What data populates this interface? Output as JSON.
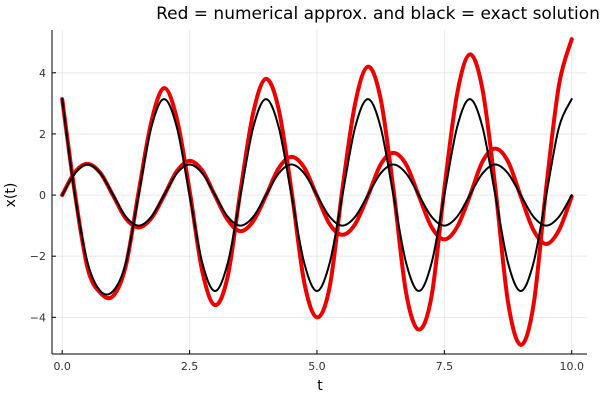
{
  "chart_data": {
    "type": "line",
    "title": "Red = numerical approx. and black = exact solution",
    "xlabel": "t",
    "ylabel": "x(t)",
    "xlim": [
      -0.2,
      10.3
    ],
    "ylim": [
      -5.2,
      5.4
    ],
    "x_ticks": [
      0,
      2.5,
      5,
      7.5,
      10
    ],
    "x_tick_labels": [
      "0.0",
      "2.5",
      "5.0",
      "7.5",
      "10.0"
    ],
    "y_ticks": [
      -4,
      -2,
      0,
      2,
      4
    ],
    "y_tick_labels": [
      "−4",
      "−2",
      "0",
      "2",
      "4"
    ],
    "grid": true,
    "legend": "none",
    "colors": {
      "numerical": "#ee0000",
      "exact": "#000000"
    },
    "series": [
      {
        "color": "#ee0000",
        "x": [
          0,
          0.25,
          0.5,
          0.75,
          1,
          1.25,
          1.5,
          1.75,
          2,
          2.25,
          2.5,
          2.75,
          3,
          3.25,
          3.5,
          3.75,
          4,
          4.25,
          4.5,
          4.75,
          5,
          5.25,
          5.5,
          5.75,
          6,
          6.25,
          6.5,
          6.75,
          7,
          7.25,
          7.5,
          7.75,
          8,
          8.25,
          8.5,
          8.75,
          9,
          9.25,
          9.5,
          9.75,
          10
        ],
        "y": [
          3.14,
          0.05,
          -2.4,
          -3.2,
          -3.3,
          -2.3,
          0.1,
          2.4,
          3.5,
          2.5,
          0.15,
          -2.5,
          -3.6,
          -2.65,
          0.15,
          2.7,
          3.8,
          2.8,
          0.15,
          -2.85,
          -4.0,
          -3.0,
          0.2,
          3.0,
          4.2,
          3.15,
          0.2,
          -3.2,
          -4.4,
          -3.3,
          0.2,
          3.3,
          4.6,
          3.45,
          0.25,
          -3.5,
          -4.9,
          -3.6,
          0.25,
          3.6,
          5.1
        ]
      },
      {
        "color": "#ee0000",
        "x": [
          0,
          0.25,
          0.5,
          0.75,
          1,
          1.25,
          1.5,
          1.75,
          2,
          2.25,
          2.5,
          2.75,
          3,
          3.25,
          3.5,
          3.75,
          4,
          4.25,
          4.5,
          4.75,
          5,
          5.25,
          5.5,
          5.75,
          6,
          6.25,
          6.5,
          6.75,
          7,
          7.25,
          7.5,
          7.75,
          8,
          8.25,
          8.5,
          8.75,
          9,
          9.25,
          9.5,
          9.75,
          10
        ],
        "y": [
          0,
          0.75,
          1.02,
          0.72,
          -0.02,
          -0.77,
          -1.06,
          -0.76,
          -0.02,
          0.78,
          1.12,
          0.8,
          -0.02,
          -0.82,
          -1.18,
          -0.85,
          -0.02,
          0.88,
          1.25,
          0.9,
          -0.03,
          -0.95,
          -1.3,
          -0.95,
          -0.03,
          1.0,
          1.38,
          1.0,
          -0.03,
          -1.05,
          -1.45,
          -1.05,
          -0.03,
          1.1,
          1.52,
          1.1,
          -0.04,
          -1.15,
          -1.6,
          -1.15,
          -0.05
        ]
      },
      {
        "color": "#000000",
        "x": [
          0,
          0.25,
          0.5,
          0.75,
          1,
          1.25,
          1.5,
          1.75,
          2,
          2.25,
          2.5,
          2.75,
          3,
          3.25,
          3.5,
          3.75,
          4,
          4.25,
          4.5,
          4.75,
          5,
          5.25,
          5.5,
          5.75,
          6,
          6.25,
          6.5,
          6.75,
          7,
          7.25,
          7.5,
          7.75,
          8,
          8.25,
          8.5,
          8.75,
          9,
          9.25,
          9.5,
          9.75,
          10
        ],
        "y": [
          3.14,
          0,
          -2.22,
          -3.14,
          -3.14,
          -2.22,
          0,
          2.22,
          3.14,
          2.22,
          0,
          -2.22,
          -3.14,
          -2.22,
          0,
          2.22,
          3.14,
          2.22,
          0,
          -2.22,
          -3.14,
          -2.22,
          0,
          2.22,
          3.14,
          2.22,
          0,
          -2.22,
          -3.14,
          -2.22,
          0,
          2.22,
          3.14,
          2.22,
          0,
          -2.22,
          -3.14,
          -2.22,
          0,
          2.22,
          3.14
        ]
      },
      {
        "color": "#000000",
        "x": [
          0,
          0.25,
          0.5,
          0.75,
          1,
          1.25,
          1.5,
          1.75,
          2,
          2.25,
          2.5,
          2.75,
          3,
          3.25,
          3.5,
          3.75,
          4,
          4.25,
          4.5,
          4.75,
          5,
          5.25,
          5.5,
          5.75,
          6,
          6.25,
          6.5,
          6.75,
          7,
          7.25,
          7.5,
          7.75,
          8,
          8.25,
          8.5,
          8.75,
          9,
          9.25,
          9.5,
          9.75,
          10
        ],
        "y": [
          0,
          0.71,
          1,
          0.71,
          0,
          -0.71,
          -1,
          -0.71,
          0,
          0.71,
          1,
          0.71,
          0,
          -0.71,
          -1,
          -0.71,
          0,
          0.71,
          1,
          0.71,
          0,
          -0.71,
          -1,
          -0.71,
          0,
          0.71,
          1,
          0.71,
          0,
          -0.71,
          -1,
          -0.71,
          0,
          0.71,
          1,
          0.71,
          0,
          -0.71,
          -1,
          -0.71,
          0
        ]
      }
    ]
  }
}
